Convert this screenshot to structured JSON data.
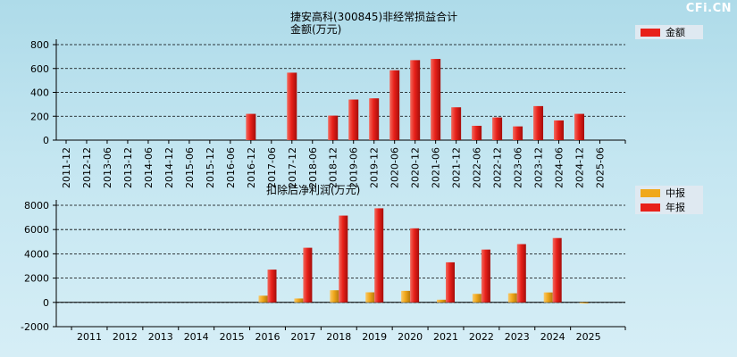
{
  "watermark": "CFi.CN",
  "colors": {
    "annual": "#e8211a",
    "interim": "#f0a81a",
    "bg_top": "#aedbe9",
    "grid": "#000000"
  },
  "chart_data": [
    {
      "type": "bar",
      "title": "捷安高科(300845)非经常损益合计",
      "subtitle": "金额(万元)",
      "categories": [
        "2011-12",
        "2012-12",
        "2013-06",
        "2013-12",
        "2014-06",
        "2014-12",
        "2015-06",
        "2015-12",
        "2016-06",
        "2016-12",
        "2017-06",
        "2017-12",
        "2018-06",
        "2018-12",
        "2019-06",
        "2019-12",
        "2020-06",
        "2020-12",
        "2021-06",
        "2021-12",
        "2022-06",
        "2022-12",
        "2023-06",
        "2023-12",
        "2024-06",
        "2024-12",
        "2025-06"
      ],
      "series": [
        {
          "name": "金额",
          "values": [
            null,
            null,
            null,
            null,
            null,
            null,
            null,
            null,
            null,
            220,
            null,
            565,
            null,
            205,
            340,
            350,
            585,
            670,
            680,
            275,
            120,
            190,
            115,
            285,
            165,
            220,
            null
          ]
        }
      ],
      "ylim": [
        0,
        800
      ],
      "yticks": [
        0,
        200,
        400,
        600,
        800
      ],
      "legend": "top-right",
      "grid": true
    },
    {
      "type": "bar",
      "title": "扣除后净利润(万元)",
      "categories": [
        "2011",
        "2012",
        "2013",
        "2014",
        "2015",
        "2016",
        "2017",
        "2018",
        "2019",
        "2020",
        "2021",
        "2022",
        "2023",
        "2024",
        "2025"
      ],
      "series": [
        {
          "name": "中报",
          "values": [
            null,
            null,
            null,
            null,
            null,
            550,
            320,
            1000,
            830,
            950,
            220,
            700,
            750,
            820,
            -80
          ]
        },
        {
          "name": "年报",
          "values": [
            null,
            null,
            null,
            null,
            null,
            2700,
            4500,
            7150,
            7750,
            6100,
            3300,
            4350,
            4800,
            5300,
            null
          ]
        }
      ],
      "ylim": [
        -2000,
        8000
      ],
      "yticks": [
        -2000,
        0,
        2000,
        4000,
        6000,
        8000
      ],
      "legend": "top-right",
      "grid": true
    }
  ]
}
